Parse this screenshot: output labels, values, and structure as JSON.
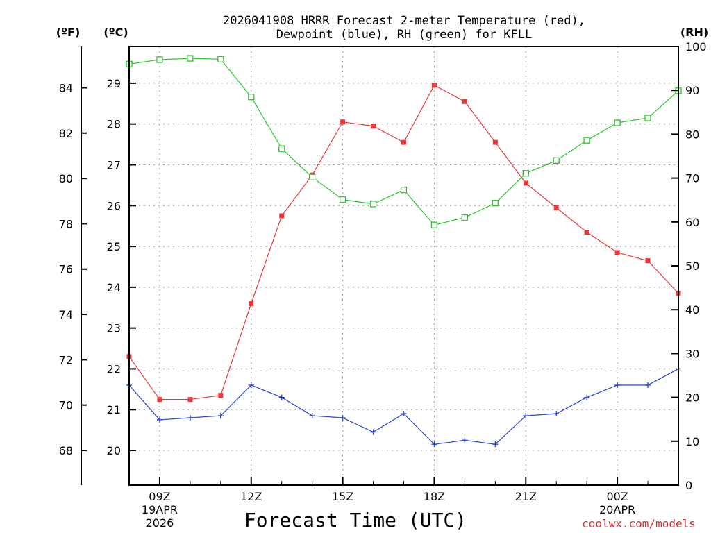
{
  "chart_data": {
    "type": "line",
    "title_line1": "2026041908 HRRR Forecast 2-meter Temperature (red),",
    "title_line2": "Dewpoint (blue), RH (green) for KFLL",
    "unit_f": "(ºF)",
    "unit_c": "(ºC)",
    "unit_rh": "(RH)",
    "xlabel": "Forecast Time (UTC)",
    "credit": "coolwx.com/models",
    "x_hours": [
      8,
      9,
      10,
      11,
      12,
      13,
      14,
      15,
      16,
      17,
      18,
      19,
      20,
      21,
      22,
      23,
      24,
      25,
      26
    ],
    "xlim": [
      8,
      26
    ],
    "x_ticks": [
      {
        "hour": 9,
        "lines": [
          "09Z",
          "19APR",
          "2026"
        ]
      },
      {
        "hour": 12,
        "lines": [
          "12Z"
        ]
      },
      {
        "hour": 15,
        "lines": [
          "15Z"
        ]
      },
      {
        "hour": 18,
        "lines": [
          "18Z"
        ]
      },
      {
        "hour": 21,
        "lines": [
          "21Z"
        ]
      },
      {
        "hour": 24,
        "lines": [
          "00Z",
          "20APR"
        ]
      }
    ],
    "celsius_axis": {
      "ylim": [
        19.15,
        29.9
      ],
      "ticks": [
        20,
        21,
        22,
        23,
        24,
        25,
        26,
        27,
        28,
        29
      ]
    },
    "fahrenheit_axis": {
      "ticks": [
        68,
        70,
        72,
        74,
        76,
        78,
        80,
        82,
        84
      ]
    },
    "rh_axis": {
      "ylim": [
        0,
        100
      ],
      "ticks": [
        0,
        10,
        20,
        30,
        40,
        50,
        60,
        70,
        80,
        90,
        100
      ]
    },
    "series": [
      {
        "name": "Temperature",
        "unit": "C",
        "color": "#e8383a",
        "marker": "filled-square",
        "values": [
          22.3,
          21.25,
          21.25,
          21.35,
          23.6,
          25.75,
          26.75,
          28.05,
          27.95,
          27.55,
          28.95,
          28.55,
          27.55,
          26.55,
          25.95,
          25.35,
          24.85,
          24.65,
          23.85
        ]
      },
      {
        "name": "Dewpoint",
        "unit": "C",
        "color": "#2845e0",
        "marker": "plus",
        "values": [
          21.6,
          20.75,
          20.8,
          20.85,
          21.6,
          21.3,
          20.85,
          20.8,
          20.45,
          20.9,
          20.15,
          20.25,
          20.15,
          20.85,
          20.9,
          21.3,
          21.6,
          21.6,
          22.0
        ]
      },
      {
        "name": "RH",
        "unit": "%",
        "color": "#22cc22",
        "marker": "open-square",
        "values": [
          96,
          97,
          97.3,
          97.1,
          88.5,
          76.7,
          70.2,
          65.1,
          64.1,
          67.3,
          59.3,
          61.0,
          64.3,
          71.1,
          74.0,
          78.6,
          82.6,
          83.7,
          89.9
        ]
      }
    ]
  }
}
